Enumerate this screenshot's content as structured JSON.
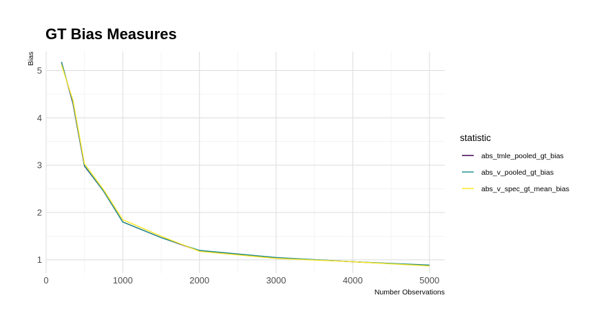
{
  "chart_data": {
    "type": "line",
    "title": "GT Bias Measures",
    "xlabel": "Number Observations",
    "ylabel": "Bias",
    "xlim": [
      0,
      5200
    ],
    "ylim": [
      0.72,
      5.4
    ],
    "x_ticks": [
      0,
      1000,
      2000,
      3000,
      4000,
      5000
    ],
    "x_tick_labels": [
      "0",
      "1000",
      "2000",
      "3000",
      "4000",
      "5000"
    ],
    "y_ticks": [
      1,
      2,
      3,
      4,
      5
    ],
    "y_tick_labels": [
      "1",
      "2",
      "3",
      "4",
      "5"
    ],
    "grid": true,
    "legend": {
      "title": "statistic",
      "position": "right"
    },
    "series": [
      {
        "name": "abs_tmle_pooled_gt_bias",
        "color": "#440154",
        "x": [
          200,
          350,
          500,
          750,
          1000,
          1500,
          2000,
          3000,
          4000,
          5000
        ],
        "y": [
          5.18,
          4.3,
          2.98,
          2.45,
          1.8,
          1.47,
          1.19,
          1.04,
          0.96,
          0.88
        ]
      },
      {
        "name": "abs_v_pooled_gt_bias",
        "color": "#21908C",
        "x": [
          200,
          350,
          500,
          750,
          1000,
          1500,
          2000,
          3000,
          4000,
          5000
        ],
        "y": [
          5.18,
          4.32,
          2.99,
          2.45,
          1.8,
          1.47,
          1.2,
          1.05,
          0.96,
          0.89
        ]
      },
      {
        "name": "abs_v_spec_gt_mean_bias",
        "color": "#FDE725",
        "x": [
          200,
          350,
          500,
          750,
          1000,
          1500,
          2000,
          3000,
          4000,
          5000
        ],
        "y": [
          5.12,
          4.37,
          3.03,
          2.48,
          1.85,
          1.5,
          1.18,
          1.03,
          0.96,
          0.87
        ]
      }
    ]
  }
}
